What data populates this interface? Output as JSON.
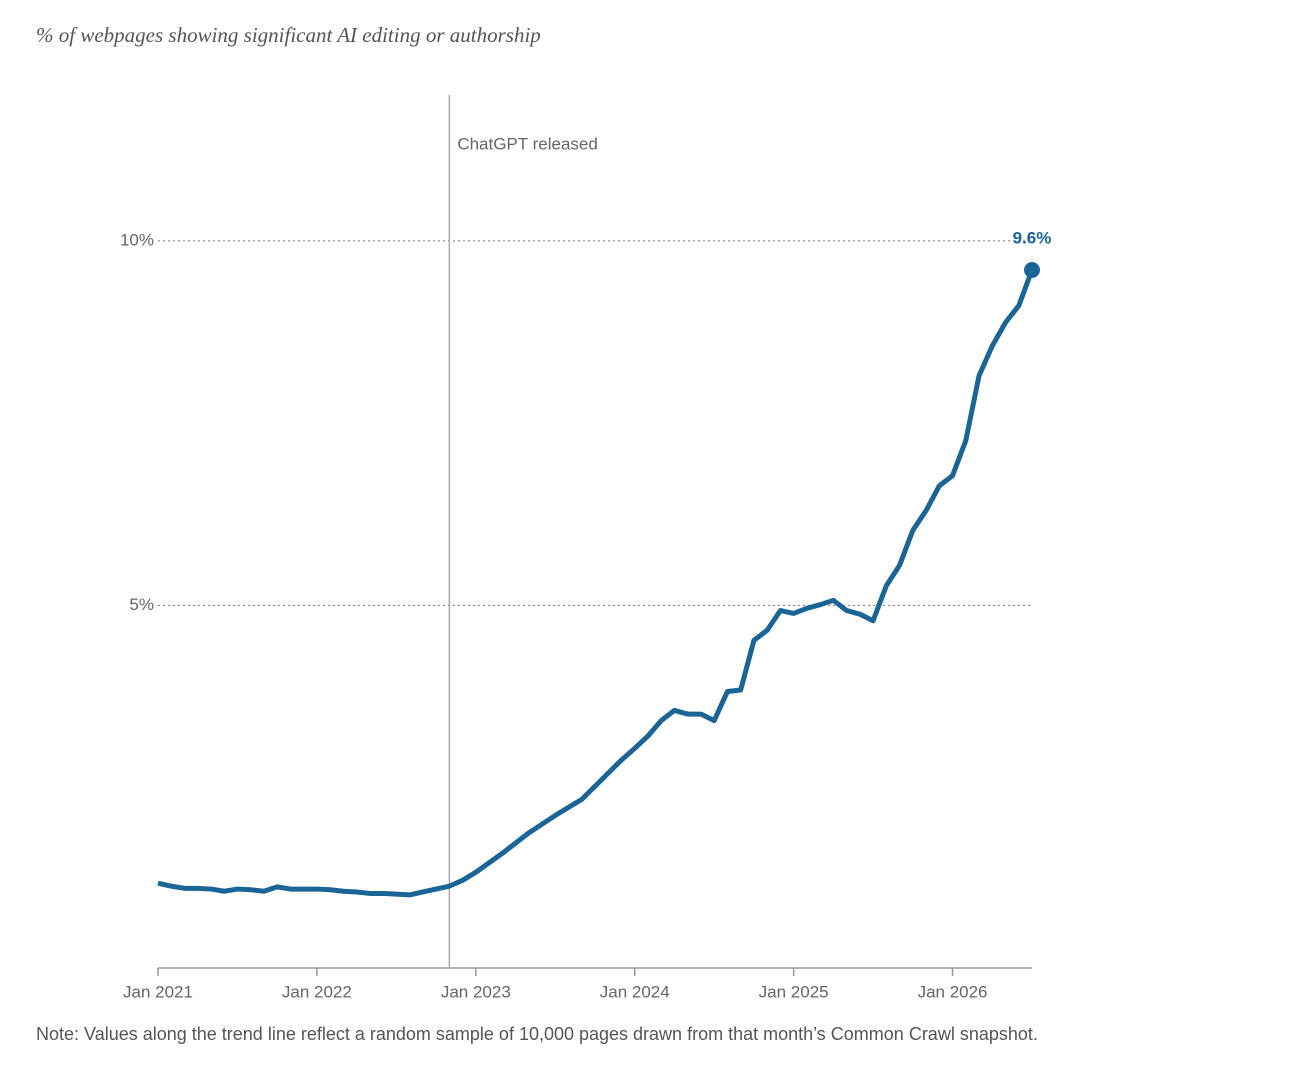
{
  "chart_data": {
    "type": "line",
    "subtitle": "% of webpages showing significant AI editing or authorship",
    "note": "Note: Values along the trend line reflect a random sample of 10,000 pages drawn from that month’s Common Crawl snapshot.",
    "x": [
      "2021-01",
      "2021-02",
      "2021-03",
      "2021-04",
      "2021-05",
      "2021-06",
      "2021-07",
      "2021-08",
      "2021-09",
      "2021-10",
      "2021-11",
      "2021-12",
      "2022-01",
      "2022-02",
      "2022-03",
      "2022-04",
      "2022-05",
      "2022-06",
      "2022-07",
      "2022-08",
      "2022-09",
      "2022-10",
      "2022-11",
      "2022-12",
      "2023-01",
      "2023-02",
      "2023-03",
      "2023-04",
      "2023-05",
      "2023-06",
      "2023-07",
      "2023-08",
      "2023-09",
      "2023-10",
      "2023-11",
      "2023-12",
      "2024-01",
      "2024-02",
      "2024-03",
      "2024-04",
      "2024-05",
      "2024-06",
      "2024-07",
      "2024-08",
      "2024-09",
      "2024-10",
      "2024-11",
      "2024-12",
      "2025-01",
      "2025-02",
      "2025-03",
      "2025-04",
      "2025-05",
      "2025-06",
      "2025-07",
      "2025-08",
      "2025-09",
      "2025-10",
      "2025-11",
      "2025-12",
      "2026-01",
      "2026-02",
      "2026-03",
      "2026-04",
      "2026-05",
      "2026-06",
      "2026-07"
    ],
    "series": [
      {
        "color": "#1a6496",
        "values": [
          1.19,
          1.15,
          1.12,
          1.12,
          1.11,
          1.08,
          1.11,
          1.1,
          1.08,
          1.14,
          1.11,
          1.11,
          1.11,
          1.1,
          1.08,
          1.07,
          1.05,
          1.05,
          1.04,
          1.03,
          1.07,
          1.11,
          1.15,
          1.23,
          1.34,
          1.47,
          1.6,
          1.74,
          1.88,
          2.0,
          2.12,
          2.23,
          2.34,
          2.52,
          2.7,
          2.88,
          3.04,
          3.21,
          3.42,
          3.56,
          3.51,
          3.51,
          3.42,
          3.82,
          3.84,
          4.52,
          4.66,
          4.93,
          4.89,
          4.96,
          5.01,
          5.07,
          4.93,
          4.88,
          4.79,
          5.27,
          5.55,
          6.03,
          6.3,
          6.64,
          6.78,
          7.26,
          8.15,
          8.56,
          8.88,
          9.11,
          9.6
        ],
        "value_labels": [
          null,
          null,
          null,
          null,
          null,
          null,
          null,
          null,
          null,
          null,
          null,
          null,
          null,
          null,
          null,
          null,
          null,
          null,
          null,
          null,
          null,
          null,
          null,
          null,
          null,
          null,
          null,
          null,
          null,
          null,
          null,
          null,
          null,
          null,
          null,
          null,
          null,
          null,
          null,
          null,
          null,
          null,
          null,
          null,
          null,
          null,
          null,
          null,
          null,
          null,
          null,
          null,
          null,
          null,
          null,
          null,
          null,
          null,
          null,
          null,
          null,
          null,
          null,
          null,
          null,
          null,
          "9.6%"
        ]
      }
    ],
    "xlim": [
      "2021-01",
      "2026-07"
    ],
    "xticks": [
      {
        "value": "2021-01",
        "label": "Jan 2021"
      },
      {
        "value": "2022-01",
        "label": "Jan 2022"
      },
      {
        "value": "2023-01",
        "label": "Jan 2023"
      },
      {
        "value": "2024-01",
        "label": "Jan 2024"
      },
      {
        "value": "2025-01",
        "label": "Jan 2025"
      },
      {
        "value": "2026-01",
        "label": "Jan 2026"
      }
    ],
    "ylim": [
      0,
      12
    ],
    "yticks": [
      {
        "value": 5,
        "label": "5%"
      },
      {
        "value": 10,
        "label": "10%"
      }
    ],
    "grid": true,
    "annotations": [
      {
        "x": "2022-11",
        "label": "ChatGPT released"
      }
    ]
  }
}
